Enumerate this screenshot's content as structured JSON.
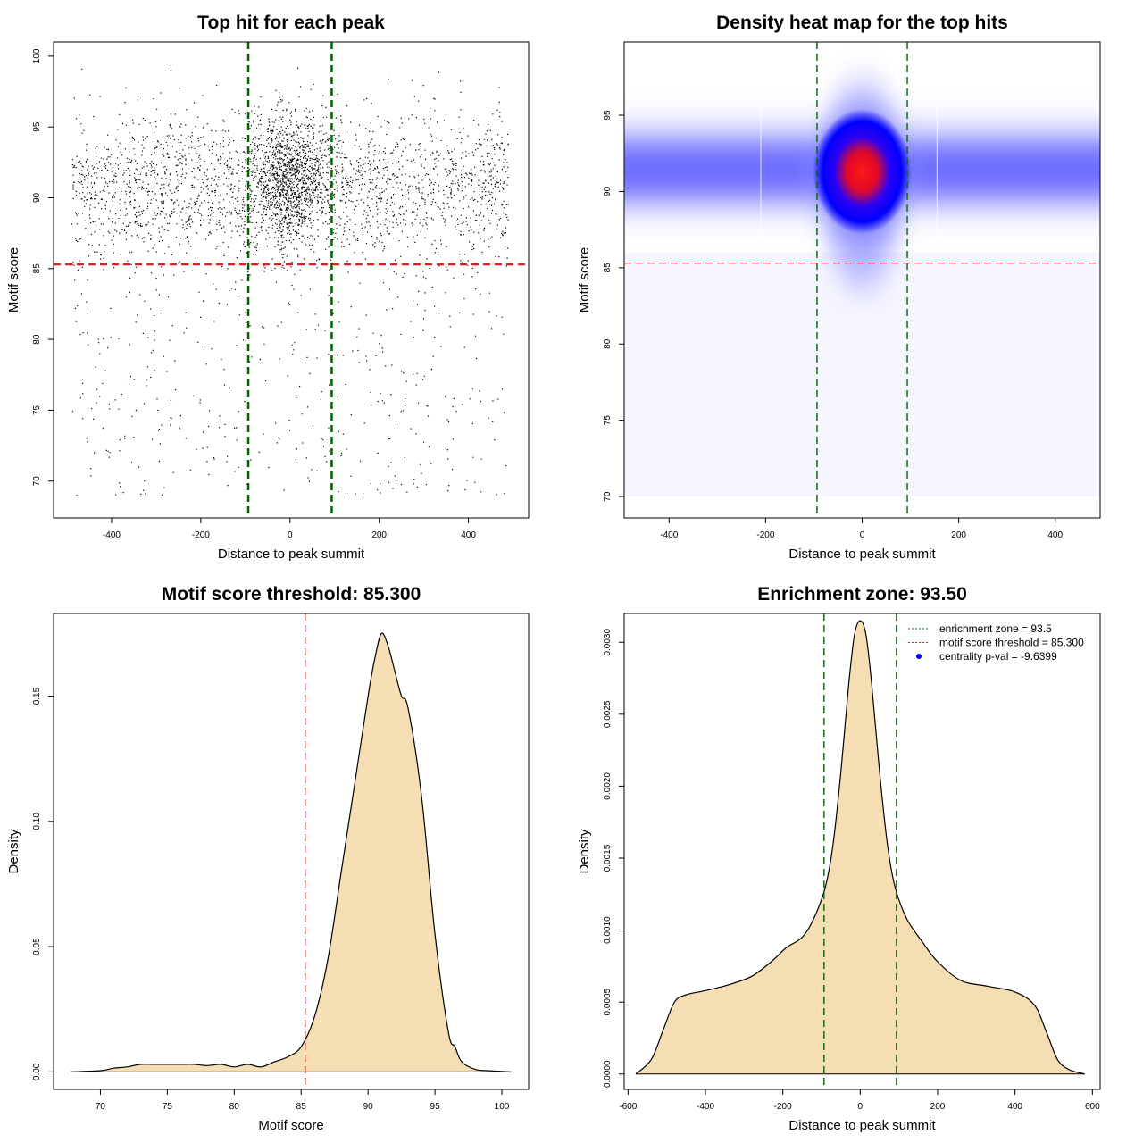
{
  "chart_data": [
    {
      "type": "scatter",
      "title": "Top hit for each peak",
      "xlabel": "Distance to peak summit",
      "ylabel": "Motif score",
      "xlim": [
        -530,
        535
      ],
      "ylim": [
        67.4,
        101.0
      ],
      "x_ticks": [
        -400,
        -200,
        0,
        200,
        400
      ],
      "y_ticks": [
        70,
        75,
        80,
        85,
        90,
        95,
        100
      ],
      "point_color": "#000000",
      "approx_points": 9000,
      "points_description": "dense cloud centered near (0, 91); most scores 86-95; sparse points down to ~69",
      "vlines": [
        -93.5,
        93.5
      ],
      "vline_color": "#006400",
      "hline": 85.3,
      "hline_color": "#e41a1c",
      "grid": false
    },
    {
      "type": "heatmap",
      "title": "Density heat map for the top hits",
      "xlabel": "Distance to peak summit",
      "ylabel": "Motif score",
      "xlim": [
        -493,
        493
      ],
      "ylim": [
        68.6,
        99.8
      ],
      "x_ticks": [
        -400,
        -200,
        0,
        200,
        400
      ],
      "y_ticks": [
        70,
        75,
        80,
        85,
        90,
        95
      ],
      "palette": [
        "#ffffff",
        "#0000ff",
        "#ff0000"
      ],
      "peak": [
        0,
        91.3
      ],
      "vlines": [
        -93.5,
        93.5
      ],
      "vline_color": "#006400",
      "hline": 85.3,
      "hline_color": "#e41a1c"
    },
    {
      "type": "area",
      "title": "Motif score threshold: 85.300",
      "xlabel": "Motif score",
      "ylabel": "Density",
      "xlim": [
        66.5,
        102.0
      ],
      "ylim": [
        -0.007,
        0.183
      ],
      "x_ticks": [
        70,
        75,
        80,
        85,
        90,
        95,
        100
      ],
      "y_ticks": [
        0.0,
        0.05,
        0.1,
        0.15
      ],
      "y_tick_labels": [
        "0.00",
        "0.05",
        "0.10",
        "0.15"
      ],
      "fill_color": "#f5deb3",
      "x": [
        67.8,
        70,
        71,
        72,
        73,
        74,
        75,
        76,
        77,
        78,
        79,
        80,
        81,
        82,
        83,
        84,
        85,
        86,
        87,
        88,
        89,
        90,
        90.5,
        91,
        91.5,
        92,
        92.5,
        93,
        94,
        95,
        96,
        96.5,
        97,
        98,
        99,
        100,
        100.7
      ],
      "y": [
        0.0,
        0.0005,
        0.0015,
        0.002,
        0.003,
        0.003,
        0.003,
        0.003,
        0.003,
        0.0025,
        0.003,
        0.002,
        0.003,
        0.002,
        0.004,
        0.006,
        0.01,
        0.022,
        0.045,
        0.08,
        0.115,
        0.15,
        0.165,
        0.175,
        0.17,
        0.16,
        0.15,
        0.145,
        0.11,
        0.055,
        0.016,
        0.01,
        0.004,
        0.001,
        0.0005,
        0.0002,
        0.0
      ],
      "vline": 85.3,
      "vline_color": "#e41a1c"
    },
    {
      "type": "area",
      "title": "Enrichment zone: 93.50",
      "xlabel": "Distance to peak summit",
      "ylabel": "Density",
      "xlim": [
        -610,
        620
      ],
      "ylim": [
        -0.000107,
        0.0032
      ],
      "x_ticks": [
        -600,
        -400,
        -200,
        0,
        200,
        400,
        600
      ],
      "y_ticks": [
        0.0,
        0.0005,
        0.001,
        0.0015,
        0.002,
        0.0025,
        0.003
      ],
      "y_tick_labels": [
        "0.0000",
        "0.0005",
        "0.0010",
        "0.0015",
        "0.0020",
        "0.0025",
        "0.0030"
      ],
      "fill_color": "#f5deb3",
      "x": [
        -580,
        -540,
        -510,
        -480,
        -450,
        -400,
        -340,
        -280,
        -230,
        -190,
        -150,
        -120,
        -90,
        -70,
        -50,
        -30,
        -15,
        0,
        15,
        30,
        50,
        70,
        90,
        120,
        160,
        200,
        260,
        330,
        400,
        450,
        480,
        510,
        540,
        580
      ],
      "y": [
        0.0,
        0.0001,
        0.0003,
        0.0005,
        0.00055,
        0.00058,
        0.00062,
        0.00068,
        0.00078,
        0.00088,
        0.00095,
        0.00108,
        0.0013,
        0.0016,
        0.0021,
        0.0027,
        0.00305,
        0.00315,
        0.00305,
        0.0027,
        0.0021,
        0.0016,
        0.0013,
        0.00108,
        0.00092,
        0.00078,
        0.00065,
        0.00061,
        0.00057,
        0.00048,
        0.0003,
        0.0001,
        3e-05,
        0.0
      ],
      "vlines": [
        -93.5,
        93.5
      ],
      "vline_color": "#006400",
      "legend": {
        "position": "top-right",
        "items": [
          {
            "label": "enrichment zone = 93.5",
            "color": "#006400",
            "style": "dotted"
          },
          {
            "label": "motif score threshold = 85.300",
            "color": "#e41a1c",
            "style": "dotted"
          },
          {
            "label": "centrality p-val = -9.6399",
            "color": "#0000ff",
            "style": "point"
          }
        ]
      }
    }
  ]
}
